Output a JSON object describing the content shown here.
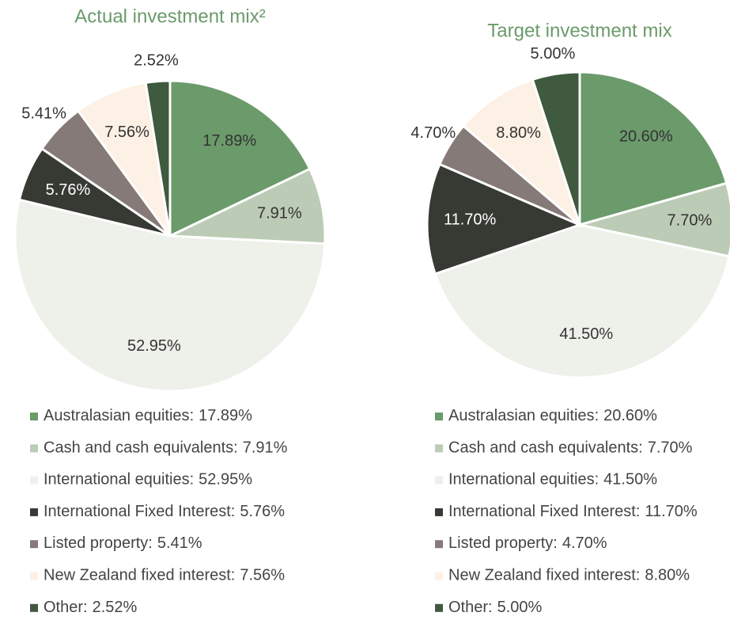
{
  "chart_data": [
    {
      "type": "pie",
      "title": "Actual investment mix²",
      "categories": [
        "Australasian equities",
        "Cash and cash equivalents",
        "International equities",
        "International Fixed Interest",
        "Listed property",
        "New Zealand fixed interest",
        "Other"
      ],
      "values": [
        17.89,
        7.91,
        52.95,
        5.76,
        5.41,
        7.56,
        2.52
      ],
      "value_labels": [
        "17.89%",
        "7.91%",
        "52.95%",
        "5.76%",
        "5.41%",
        "7.56%",
        "2.52%"
      ],
      "colors": [
        "#6b9a6b",
        "#bccbb5",
        "#eef0ea",
        "#373a33",
        "#857a77",
        "#fdf0e4",
        "#3f5a3e"
      ]
    },
    {
      "type": "pie",
      "title": "Target investment mix",
      "categories": [
        "Australasian equities",
        "Cash and cash equivalents",
        "International equities",
        "International Fixed Interest",
        "Listed property",
        "New Zealand fixed interest",
        "Other"
      ],
      "values": [
        20.6,
        7.7,
        41.5,
        11.7,
        4.7,
        8.8,
        5.0
      ],
      "value_labels": [
        "20.60%",
        "7.70%",
        "41.50%",
        "11.70%",
        "4.70%",
        "8.80%",
        "5.00%"
      ],
      "colors": [
        "#6b9a6b",
        "#bccbb5",
        "#eef0ea",
        "#373a33",
        "#857a77",
        "#fdf0e4",
        "#3f5a3e"
      ]
    }
  ]
}
